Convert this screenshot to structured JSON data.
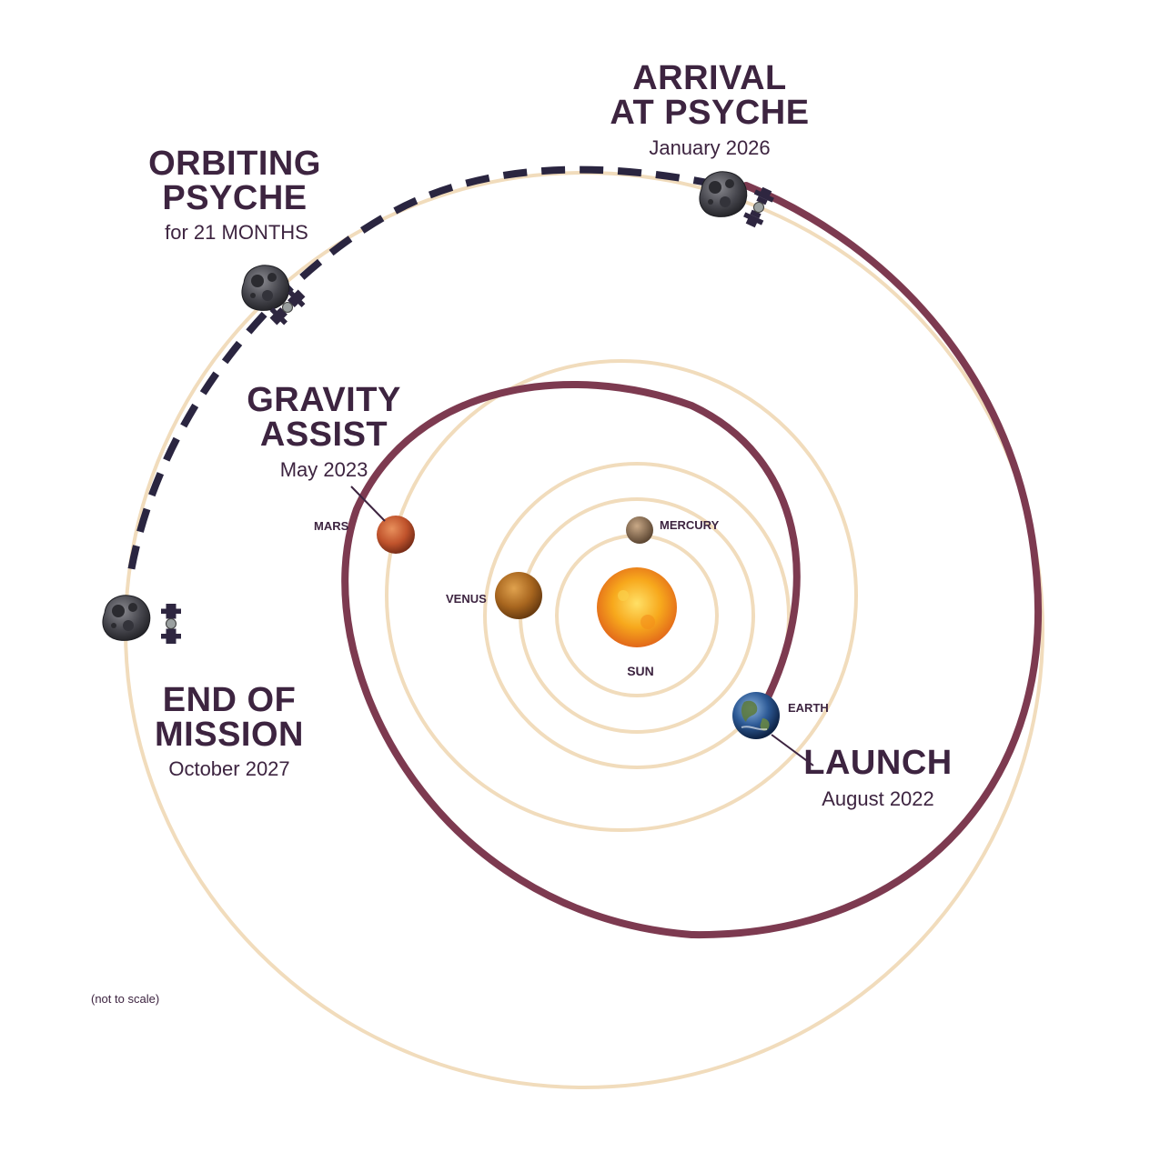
{
  "colors": {
    "orbit_line": "#f1dcbc",
    "trajectory": "#7d3a50",
    "dashed_path": "#2a2540",
    "text": "#3d2440"
  },
  "milestones": {
    "arrival": {
      "line1": "ARRIVAL",
      "line2": "AT PSYCHE",
      "date": "January 2026"
    },
    "orbiting": {
      "line1": "ORBITING",
      "line2": "PSYCHE",
      "duration": "for 21 MONTHS"
    },
    "gravity_assist": {
      "line1": "GRAVITY",
      "line2": "ASSIST",
      "date": "May 2023"
    },
    "end_of_mission": {
      "line1": "END OF",
      "line2": "MISSION",
      "date": "October 2027"
    },
    "launch": {
      "line1": "LAUNCH",
      "date": "August 2022"
    }
  },
  "bodies": {
    "sun": "SUN",
    "mercury": "MERCURY",
    "venus": "VENUS",
    "earth": "EARTH",
    "mars": "MARS"
  },
  "footnote": "(not to scale)",
  "icons": [
    "sun-icon",
    "mercury-icon",
    "venus-icon",
    "earth-icon",
    "mars-icon",
    "psyche-asteroid-icon",
    "spacecraft-icon"
  ]
}
